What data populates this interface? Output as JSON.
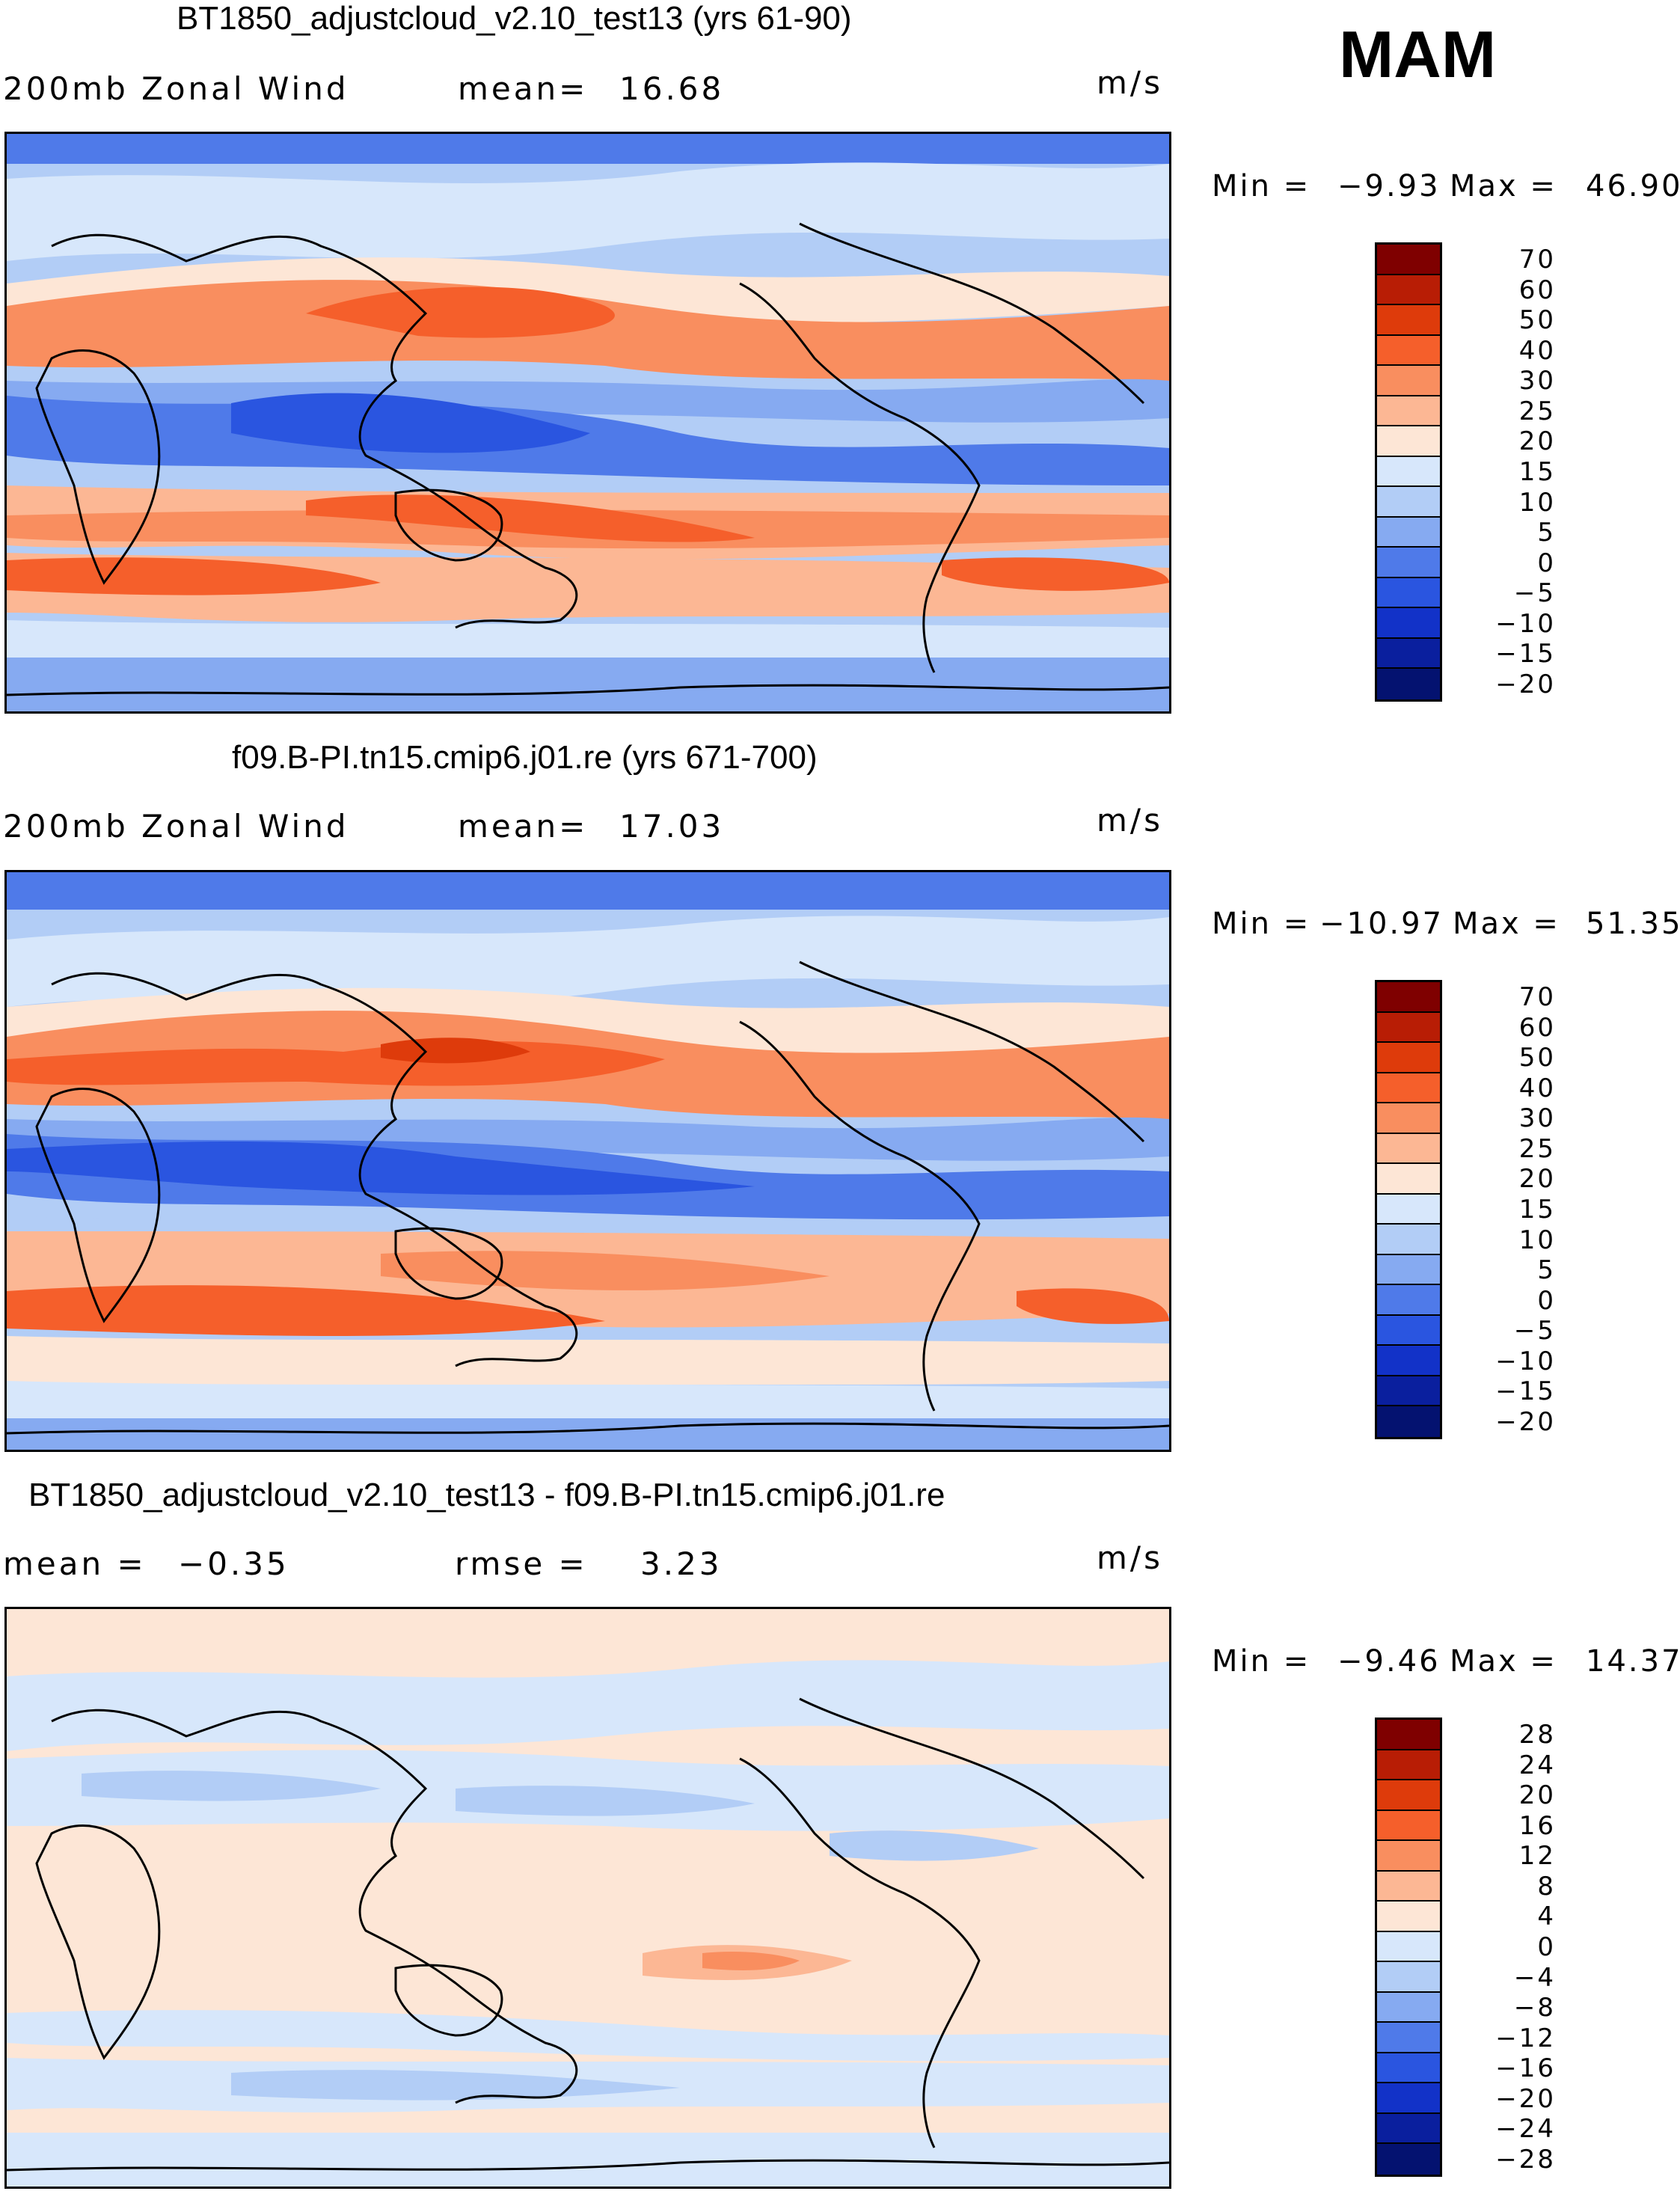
{
  "season": "MAM",
  "panels": [
    {
      "title": "BT1850_adjustcloud_v2.10_test13 (yrs 61-90)",
      "left_label": "200mb Zonal Wind",
      "mid_label": "mean=",
      "mid_value": "16.68",
      "units": "m/s",
      "min_label": "Min =",
      "min_value": "−9.93",
      "max_label": "Max =",
      "max_value": "46.90",
      "colorbar": {
        "colors": [
          "#7f0000",
          "#b81d05",
          "#de3b0b",
          "#f55f2b",
          "#f98e5f",
          "#fcb794",
          "#fde6d6",
          "#d7e7fb",
          "#b2cdf6",
          "#86aaf1",
          "#4f7ae9",
          "#2a55e0",
          "#1232c8",
          "#0a1f9e",
          "#041270"
        ],
        "labels": [
          "70",
          "60",
          "50",
          "40",
          "30",
          "25",
          "20",
          "15",
          "10",
          "5",
          "0",
          "−5",
          "−10",
          "−15",
          "−20"
        ]
      }
    },
    {
      "title": "f09.B-PI.tn15.cmip6.j01.re (yrs 671-700)",
      "left_label": "200mb Zonal Wind",
      "mid_label": "mean=",
      "mid_value": "17.03",
      "units": "m/s",
      "min_label": "Min =",
      "min_value": "−10.97",
      "max_label": "Max =",
      "max_value": "51.35",
      "colorbar": {
        "colors": [
          "#7f0000",
          "#b81d05",
          "#de3b0b",
          "#f55f2b",
          "#f98e5f",
          "#fcb794",
          "#fde6d6",
          "#d7e7fb",
          "#b2cdf6",
          "#86aaf1",
          "#4f7ae9",
          "#2a55e0",
          "#1232c8",
          "#0a1f9e",
          "#041270"
        ],
        "labels": [
          "70",
          "60",
          "50",
          "40",
          "30",
          "25",
          "20",
          "15",
          "10",
          "5",
          "0",
          "−5",
          "−10",
          "−15",
          "−20"
        ]
      }
    },
    {
      "title": "BT1850_adjustcloud_v2.10_test13 - f09.B-PI.tn15.cmip6.j01.re",
      "left_label": "mean =",
      "left_value": "−0.35",
      "mid_label": "rmse =",
      "mid_value": "3.23",
      "units": "m/s",
      "min_label": "Min =",
      "min_value": "−9.46",
      "max_label": "Max =",
      "max_value": "14.37",
      "colorbar": {
        "colors": [
          "#7f0000",
          "#b81d05",
          "#de3b0b",
          "#f55f2b",
          "#f98e5f",
          "#fcb794",
          "#fde6d6",
          "#d7e7fb",
          "#b2cdf6",
          "#86aaf1",
          "#4f7ae9",
          "#2a55e0",
          "#1232c8",
          "#0a1f9e",
          "#041270"
        ],
        "labels": [
          "28",
          "24",
          "20",
          "16",
          "12",
          "8",
          "4",
          "0",
          "−4",
          "−8",
          "−12",
          "−16",
          "−20",
          "−24",
          "−28"
        ]
      }
    }
  ]
}
